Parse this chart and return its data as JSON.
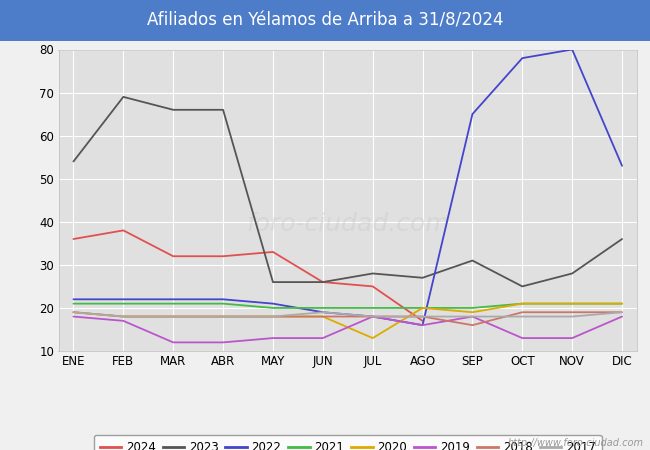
{
  "title": "Afiliados en Yélamos de Arriba a 31/8/2024",
  "title_bg_color": "#4d7cc9",
  "title_text_color": "#ffffff",
  "months": [
    "ENE",
    "FEB",
    "MAR",
    "ABR",
    "MAY",
    "JUN",
    "JUL",
    "AGO",
    "SEP",
    "OCT",
    "NOV",
    "DIC"
  ],
  "ylim": [
    10,
    80
  ],
  "yticks": [
    10,
    20,
    30,
    40,
    50,
    60,
    70,
    80
  ],
  "series": {
    "2024": {
      "color": "#e05050",
      "data": [
        36,
        38,
        32,
        32,
        33,
        26,
        25,
        17,
        null,
        null,
        null,
        null
      ]
    },
    "2023": {
      "color": "#555555",
      "data": [
        54,
        69,
        66,
        66,
        26,
        26,
        28,
        27,
        31,
        25,
        28,
        36
      ]
    },
    "2022": {
      "color": "#4444cc",
      "data": [
        22,
        22,
        22,
        22,
        21,
        19,
        18,
        16,
        65,
        78,
        80,
        53
      ]
    },
    "2021": {
      "color": "#44bb44",
      "data": [
        21,
        21,
        21,
        21,
        20,
        20,
        20,
        20,
        20,
        21,
        21,
        21
      ]
    },
    "2020": {
      "color": "#ddaa00",
      "data": [
        19,
        18,
        18,
        18,
        18,
        18,
        13,
        20,
        19,
        21,
        21,
        21
      ]
    },
    "2019": {
      "color": "#bb55cc",
      "data": [
        18,
        17,
        12,
        12,
        13,
        13,
        18,
        16,
        18,
        13,
        13,
        18
      ]
    },
    "2018": {
      "color": "#cc7766",
      "data": [
        19,
        18,
        18,
        18,
        18,
        18,
        18,
        18,
        16,
        19,
        19,
        19
      ]
    },
    "2017": {
      "color": "#aaaaaa",
      "data": [
        19,
        18,
        18,
        18,
        18,
        19,
        18,
        18,
        18,
        18,
        18,
        19
      ]
    }
  },
  "legend_order": [
    "2024",
    "2023",
    "2022",
    "2021",
    "2020",
    "2019",
    "2018",
    "2017"
  ],
  "watermark": "http://www.foro-ciudad.com",
  "background_color": "#f0f0f0",
  "grid_color": "#ffffff",
  "plot_bg_color": "#e0e0e0"
}
